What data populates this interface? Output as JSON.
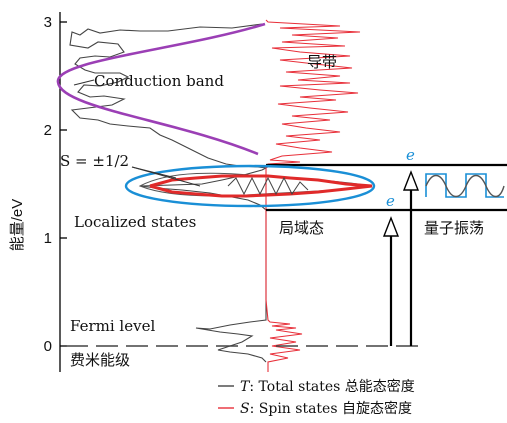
{
  "axis": {
    "ylabel": "能量/eV",
    "ticks": [
      {
        "value": 0,
        "label": "0"
      },
      {
        "value": 1,
        "label": "1"
      },
      {
        "value": 2,
        "label": "2"
      },
      {
        "value": 3,
        "label": "3"
      }
    ],
    "ylim": [
      -0.25,
      3.15
    ]
  },
  "labels": {
    "conduction_band_en": "Conduction band",
    "conduction_band_zh": "导带",
    "spin_label": "S = ±1/2",
    "localized_states_en": "Localized states",
    "localized_states_zh": "局域态",
    "quantum_oscillation_zh": "量子振荡",
    "fermi_level_en": "Fermi level",
    "fermi_level_zh": "费米能级",
    "electron_1": "e",
    "electron_2": "e"
  },
  "legend": [
    {
      "symbol": "T",
      "text": ": Total states ",
      "text_zh": "总能态密度",
      "color": "#444444"
    },
    {
      "symbol": "S",
      "text": ": Spin states ",
      "text_zh": "自旋态密度",
      "color": "#e8303a"
    }
  ],
  "colors": {
    "total_states": "#444444",
    "spin_states": "#e8303a",
    "band_envelope": "#9b3fb5",
    "localized_ellipse": "#1a8fd6",
    "level_lines": "#000000"
  },
  "levels": {
    "localized_upper": 1.67,
    "localized_lower": 1.25,
    "fermi": 0.0
  }
}
